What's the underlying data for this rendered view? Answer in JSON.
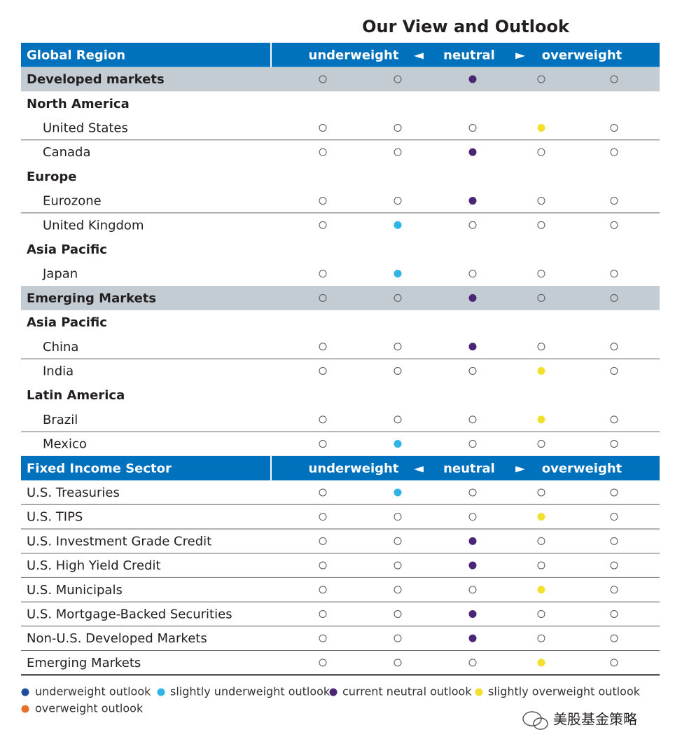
{
  "title": "Our View and Outlook",
  "sections": [
    {
      "header": {
        "label": "Global Region",
        "columns": [
          "underweight",
          "◄",
          "neutral",
          "►",
          "overweight"
        ]
      },
      "rows": [
        {
          "label": "Developed markets",
          "kind": "group",
          "rating": 2
        },
        {
          "label": "North America",
          "kind": "heading",
          "rating": null
        },
        {
          "label": "United States",
          "kind": "item",
          "rating": 3
        },
        {
          "label": "Canada",
          "kind": "item",
          "rating": 2
        },
        {
          "label": "Europe",
          "kind": "heading",
          "rating": null
        },
        {
          "label": "Eurozone",
          "kind": "item",
          "rating": 2
        },
        {
          "label": "United Kingdom",
          "kind": "item",
          "rating": 1
        },
        {
          "label": "Asia Pacific",
          "kind": "heading",
          "rating": null
        },
        {
          "label": "Japan",
          "kind": "item",
          "rating": 1
        },
        {
          "label": "Emerging Markets",
          "kind": "group",
          "rating": 2
        },
        {
          "label": "Asia Pacific",
          "kind": "heading",
          "rating": null
        },
        {
          "label": "China",
          "kind": "item",
          "rating": 2
        },
        {
          "label": "India",
          "kind": "item",
          "rating": 3
        },
        {
          "label": "Latin America",
          "kind": "heading",
          "rating": null
        },
        {
          "label": "Brazil",
          "kind": "item",
          "rating": 3
        },
        {
          "label": "Mexico",
          "kind": "item",
          "rating": 1
        }
      ]
    },
    {
      "header": {
        "label": "Fixed Income Sector",
        "columns": [
          "underweight",
          "◄",
          "neutral",
          "►",
          "overweight"
        ]
      },
      "rows": [
        {
          "label": "U.S. Treasuries",
          "kind": "row",
          "rating": 1
        },
        {
          "label": "U.S. TIPS",
          "kind": "row",
          "rating": 3
        },
        {
          "label": "U.S. Investment Grade Credit",
          "kind": "row",
          "rating": 2
        },
        {
          "label": "U.S. High Yield Credit",
          "kind": "row",
          "rating": 2
        },
        {
          "label": "U.S. Municipals",
          "kind": "row",
          "rating": 3
        },
        {
          "label": "U.S. Mortgage-Backed Securities",
          "kind": "row",
          "rating": 2
        },
        {
          "label": "Non-U.S. Developed Markets",
          "kind": "row",
          "rating": 2
        },
        {
          "label": "Emerging Markets",
          "kind": "row",
          "rating": 3
        }
      ]
    }
  ],
  "legend": [
    {
      "label": "underweight outlook",
      "color": "#1c4e9c"
    },
    {
      "label": "slightly underweight outlook",
      "color": "#2fb4e6"
    },
    {
      "label": "current neutral outlook",
      "color": "#4b2576"
    },
    {
      "label": "slightly overweight outlook",
      "color": "#f2e02e"
    },
    {
      "label": "overweight outlook",
      "color": "#e8702a"
    }
  ],
  "watermark": "美股基金策略"
}
